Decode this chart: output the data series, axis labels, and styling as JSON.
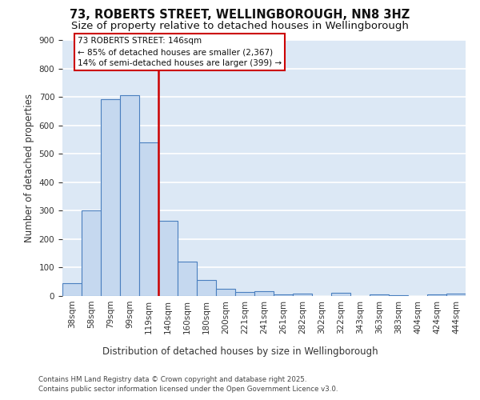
{
  "title_line1": "73, ROBERTS STREET, WELLINGBOROUGH, NN8 3HZ",
  "title_line2": "Size of property relative to detached houses in Wellingborough",
  "xlabel": "Distribution of detached houses by size in Wellingborough",
  "ylabel": "Number of detached properties",
  "categories": [
    "38sqm",
    "58sqm",
    "79sqm",
    "99sqm",
    "119sqm",
    "140sqm",
    "160sqm",
    "180sqm",
    "200sqm",
    "221sqm",
    "241sqm",
    "261sqm",
    "282sqm",
    "302sqm",
    "322sqm",
    "343sqm",
    "363sqm",
    "383sqm",
    "404sqm",
    "424sqm",
    "444sqm"
  ],
  "values": [
    45,
    300,
    693,
    706,
    540,
    265,
    122,
    57,
    25,
    15,
    17,
    5,
    8,
    0,
    10,
    0,
    5,
    3,
    0,
    5,
    8
  ],
  "bar_color": "#c5d8ef",
  "bar_edge_color": "#4a7fbf",
  "vline_index": 5,
  "vline_color": "#cc0000",
  "annotation_line1": "73 ROBERTS STREET: 146sqm",
  "annotation_line2": "← 85% of detached houses are smaller (2,367)",
  "annotation_line3": "14% of semi-detached houses are larger (399) →",
  "annotation_box_edgecolor": "#cc0000",
  "background_color": "#dce8f5",
  "grid_color": "#ffffff",
  "ylim": [
    0,
    900
  ],
  "yticks": [
    0,
    100,
    200,
    300,
    400,
    500,
    600,
    700,
    800,
    900
  ],
  "footer_text": "Contains HM Land Registry data © Crown copyright and database right 2025.\nContains public sector information licensed under the Open Government Licence v3.0.",
  "title_fontsize": 10.5,
  "subtitle_fontsize": 9.5,
  "axis_label_fontsize": 8.5,
  "tick_fontsize": 7.5,
  "annotation_fontsize": 7.5
}
